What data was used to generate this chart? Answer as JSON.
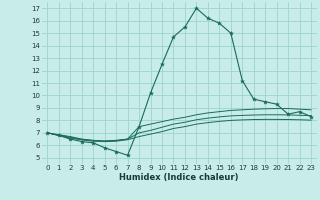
{
  "xlabel": "Humidex (Indice chaleur)",
  "bg_color": "#c8ece8",
  "grid_color": "#9dd4ce",
  "line_color": "#1a6b5a",
  "xlim": [
    -0.5,
    23.5
  ],
  "ylim": [
    4.5,
    17.5
  ],
  "xticks": [
    0,
    1,
    2,
    3,
    4,
    5,
    6,
    7,
    8,
    9,
    10,
    11,
    12,
    13,
    14,
    15,
    16,
    17,
    18,
    19,
    20,
    21,
    22,
    23
  ],
  "yticks": [
    5,
    6,
    7,
    8,
    9,
    10,
    11,
    12,
    13,
    14,
    15,
    16,
    17
  ],
  "series": {
    "main": [
      7.0,
      6.8,
      6.5,
      6.3,
      6.2,
      5.8,
      5.5,
      5.2,
      7.5,
      10.2,
      12.5,
      14.7,
      15.5,
      17.0,
      16.2,
      15.8,
      15.0,
      11.2,
      9.7,
      9.5,
      9.3,
      8.5,
      8.7,
      8.3
    ],
    "line2": [
      7.0,
      6.85,
      6.7,
      6.5,
      6.4,
      6.35,
      6.4,
      6.5,
      7.5,
      7.7,
      7.9,
      8.1,
      8.25,
      8.45,
      8.6,
      8.7,
      8.8,
      8.85,
      8.9,
      8.93,
      8.95,
      8.95,
      8.9,
      8.85
    ],
    "line3": [
      7.0,
      6.82,
      6.65,
      6.48,
      6.38,
      6.33,
      6.38,
      6.5,
      7.0,
      7.2,
      7.45,
      7.7,
      7.85,
      8.05,
      8.18,
      8.28,
      8.36,
      8.4,
      8.43,
      8.45,
      8.45,
      8.44,
      8.41,
      8.38
    ],
    "line4": [
      7.0,
      6.78,
      6.58,
      6.43,
      6.33,
      6.3,
      6.33,
      6.45,
      6.7,
      6.9,
      7.1,
      7.35,
      7.5,
      7.7,
      7.82,
      7.92,
      8.0,
      8.04,
      8.07,
      8.08,
      8.08,
      8.07,
      8.05,
      8.02
    ]
  }
}
